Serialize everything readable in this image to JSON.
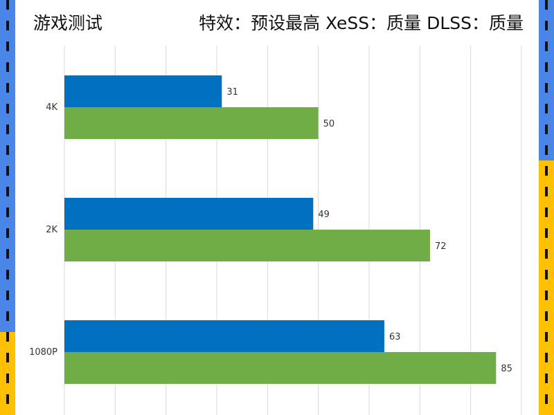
{
  "header": {
    "title": "游戏测试",
    "settings": "特效：预设最高 XeSS：质量 DLSS：质量"
  },
  "colors": {
    "series_a": "#0070c0",
    "series_b": "#70ad47",
    "frame_blue": "#4a86e8",
    "frame_yellow": "#ffc000",
    "grid": "#d9d9d9"
  },
  "chart_data": {
    "type": "bar",
    "orientation": "horizontal",
    "categories": [
      "4K",
      "2K",
      "1080P"
    ],
    "series": [
      {
        "values": [
          31,
          49,
          63
        ]
      },
      {
        "values": [
          50,
          72,
          85
        ]
      }
    ],
    "xlim": [
      0,
      90
    ],
    "grid": true,
    "legend": "none",
    "title": "",
    "xlabel": "",
    "ylabel": ""
  }
}
